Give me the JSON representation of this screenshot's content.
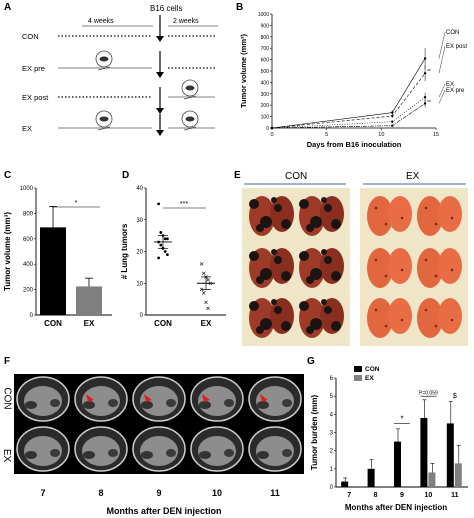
{
  "panels": {
    "A": {
      "letter": "A",
      "header_cells": "B16 cells",
      "header_left": "4 weeks",
      "header_right": "2 weeks",
      "rows": [
        {
          "label": "CON",
          "pre": "dotted",
          "post": "dotted"
        },
        {
          "label": "EX pre",
          "pre": "solid",
          "post": "dotted"
        },
        {
          "label": "EX post",
          "pre": "dotted",
          "post": "solid"
        },
        {
          "label": "EX",
          "pre": "solid",
          "post": "solid"
        }
      ]
    },
    "B": {
      "letter": "B",
      "legend": [
        "CON",
        "EX post",
        "EX",
        "EX pre"
      ]
    },
    "C": {
      "letter": "C",
      "sig": "*"
    },
    "D": {
      "letter": "D",
      "sig": "***"
    },
    "E": {
      "letter": "E",
      "group_left": "CON",
      "group_right": "EX"
    },
    "F": {
      "letter": "F",
      "row_top": "CON",
      "row_bottom": "EX",
      "months": [
        "7",
        "8",
        "9",
        "10",
        "11"
      ],
      "xlabel": "Months after DEN injection"
    },
    "G": {
      "letter": "G",
      "legend": [
        "CON",
        "EX"
      ],
      "sig_9": "*",
      "p_label": "P=0.059",
      "sig_11": "$"
    }
  },
  "chart_data": [
    {
      "id": "B",
      "type": "line",
      "xlabel": "Days from B16 inoculation",
      "ylabel": "Tumor volume (mm³)",
      "xlim": [
        0,
        15
      ],
      "ylim": [
        0,
        1000
      ],
      "xticks": [
        0,
        5,
        10,
        15
      ],
      "yticks": [
        0,
        100,
        200,
        300,
        400,
        500,
        600,
        700,
        800,
        900,
        1000
      ],
      "x": [
        0,
        11,
        14
      ],
      "series": [
        {
          "name": "CON",
          "values": [
            0,
            135,
            610
          ],
          "errors": [
            0,
            20,
            90
          ]
        },
        {
          "name": "EX post",
          "values": [
            0,
            105,
            480
          ],
          "errors": [
            0,
            15,
            70
          ]
        },
        {
          "name": "EX",
          "values": [
            0,
            55,
            270
          ],
          "errors": [
            0,
            10,
            40
          ]
        },
        {
          "name": "EX pre",
          "values": [
            0,
            20,
            215
          ],
          "errors": [
            0,
            8,
            35
          ]
        }
      ],
      "annotations": [
        "**",
        "**"
      ]
    },
    {
      "id": "C",
      "type": "bar",
      "ylabel": "Tumor volume (mm³)",
      "categories": [
        "CON",
        "EX"
      ],
      "values": [
        690,
        225
      ],
      "errors": [
        165,
        65
      ],
      "ylim": [
        0,
        1000
      ],
      "yticks": [
        0,
        200,
        400,
        600,
        800,
        1000
      ],
      "colors": [
        "#000000",
        "#808080"
      ]
    },
    {
      "id": "D",
      "type": "scatter",
      "ylabel": "# Lung tumors",
      "categories": [
        "CON",
        "EX"
      ],
      "ylim": [
        0,
        40
      ],
      "yticks": [
        0,
        10,
        20,
        30,
        40
      ],
      "series": [
        {
          "name": "CON",
          "points": [
            35,
            26,
            25,
            24,
            24,
            23,
            22,
            21,
            20,
            19,
            18
          ],
          "mean": 23,
          "sem": 2
        },
        {
          "name": "EX",
          "points": [
            16,
            13,
            12,
            11,
            10,
            8,
            7,
            4,
            2
          ],
          "mean": 10,
          "sem": 2
        }
      ]
    },
    {
      "id": "G",
      "type": "bar",
      "ylabel": "Tumor burden (mm)",
      "xlabel": "Months after DEN injection",
      "categories": [
        "7",
        "8",
        "9",
        "10",
        "11"
      ],
      "ylim": [
        0,
        6
      ],
      "yticks": [
        0,
        1,
        2,
        3,
        4,
        5,
        6
      ],
      "series": [
        {
          "name": "CON",
          "values": [
            0.3,
            1.0,
            2.5,
            3.8,
            3.5
          ],
          "errors": [
            0.2,
            0.5,
            0.7,
            1.0,
            1.2
          ]
        },
        {
          "name": "EX",
          "values": [
            0,
            0,
            0,
            0.8,
            1.3
          ],
          "errors": [
            0,
            0,
            0,
            0.5,
            1.0
          ]
        }
      ],
      "colors": [
        "#000000",
        "#808080"
      ]
    }
  ]
}
